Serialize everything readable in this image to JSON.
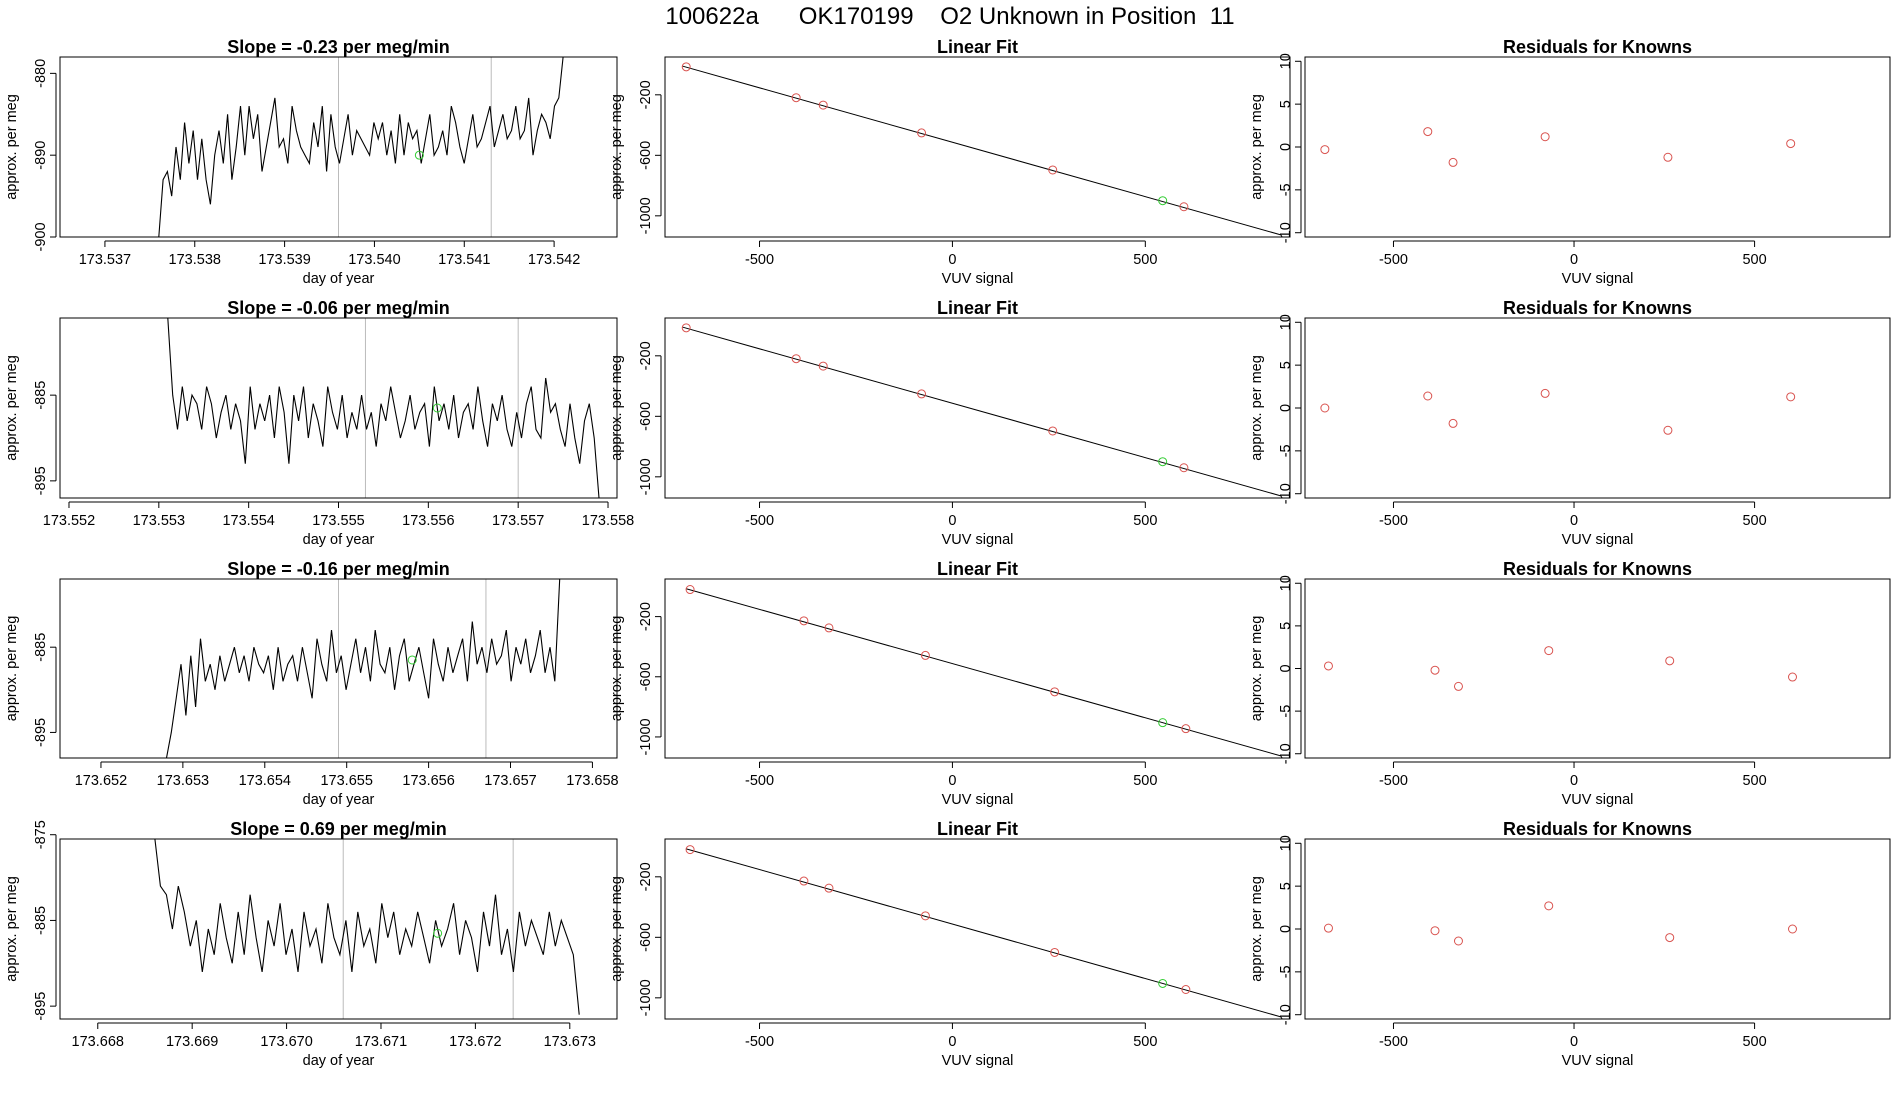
{
  "title": "100622a      OK170199    O2 Unknown in Position  11",
  "colors": {
    "line": "#000000",
    "frame": "#000000",
    "known_point": "#d9534f",
    "unknown_point": "#33cc33",
    "vline": "#bbbbbb"
  },
  "chart_data": [
    {
      "type": "line",
      "row": 0,
      "col": 0,
      "title": "Slope =  -0.23  per meg/min",
      "xlabel": "day of year",
      "ylabel": "approx. per meg",
      "xlim": [
        173.5365,
        173.5427
      ],
      "ylim": [
        -900,
        -878
      ],
      "xticks": [
        173.537,
        173.538,
        173.539,
        173.54,
        173.541,
        173.542
      ],
      "xtick_labels": [
        "173.537",
        "173.538",
        "173.539",
        "173.540",
        "173.541",
        "173.542"
      ],
      "yticks": [
        -900,
        -890,
        -880
      ],
      "ytick_labels": [
        "-900",
        "-890",
        "-880"
      ],
      "vlines": [
        173.5396,
        173.5413
      ],
      "x_start": 173.5376,
      "x_end": 173.5421,
      "series": [
        -900,
        -893,
        -892,
        -895,
        -889,
        -893,
        -886,
        -891,
        -887,
        -893,
        -888,
        -893,
        -896,
        -890,
        -887,
        -891,
        -885,
        -893,
        -889,
        -884,
        -890,
        -884,
        -888,
        -885,
        -892,
        -889,
        -886,
        -883,
        -889,
        -888,
        -891,
        -884,
        -887,
        -889,
        -890,
        -891,
        -886,
        -889,
        -884,
        -892,
        -885,
        -889,
        -891,
        -888,
        -885,
        -890,
        -887,
        -888,
        -889,
        -890,
        -886,
        -888,
        -886,
        -890,
        -887,
        -891,
        -885,
        -890,
        -886,
        -888,
        -887,
        -891,
        -888,
        -885,
        -890,
        -889,
        -887,
        -890,
        -884,
        -886,
        -889,
        -891,
        -888,
        -885,
        -889,
        -888,
        -886,
        -884,
        -889,
        -887,
        -885,
        -888,
        -887,
        -884,
        -888,
        -887,
        -883,
        -890,
        -887,
        -885,
        -886,
        -888,
        -884,
        -883,
        -878
      ],
      "unknown_point": {
        "x": 173.5405,
        "y": -890
      }
    },
    {
      "type": "line",
      "row": 1,
      "col": 0,
      "title": "Slope =  -0.06  per meg/min",
      "xlabel": "day of year",
      "ylabel": "approx. per meg",
      "xlim": [
        173.5519,
        173.5581
      ],
      "ylim": [
        -897,
        -876
      ],
      "xticks": [
        173.552,
        173.553,
        173.554,
        173.555,
        173.556,
        173.557,
        173.558
      ],
      "xtick_labels": [
        "173.552",
        "173.553",
        "173.554",
        "173.555",
        "173.556",
        "173.557",
        "173.558"
      ],
      "yticks": [
        -895,
        -885
      ],
      "ytick_labels": [
        "-895",
        "-885"
      ],
      "vlines": [
        173.5553,
        173.557
      ],
      "x_start": 173.5531,
      "x_end": 173.5579,
      "series": [
        -876,
        -885,
        -889,
        -884,
        -888,
        -885,
        -886,
        -889,
        -884,
        -886,
        -890,
        -887,
        -885,
        -889,
        -886,
        -888,
        -893,
        -884,
        -889,
        -886,
        -888,
        -885,
        -890,
        -884,
        -887,
        -893,
        -885,
        -888,
        -884,
        -890,
        -886,
        -888,
        -891,
        -884,
        -887,
        -889,
        -885,
        -890,
        -887,
        -889,
        -885,
        -889,
        -887,
        -891,
        -886,
        -888,
        -884,
        -887,
        -890,
        -888,
        -885,
        -889,
        -887,
        -886,
        -891,
        -884,
        -888,
        -886,
        -889,
        -885,
        -890,
        -887,
        -886,
        -889,
        -884,
        -888,
        -891,
        -886,
        -888,
        -885,
        -889,
        -891,
        -887,
        -890,
        -886,
        -884,
        -889,
        -890,
        -883,
        -887,
        -886,
        -889,
        -891,
        -886,
        -890,
        -893,
        -888,
        -886,
        -890,
        -897
      ],
      "unknown_point": {
        "x": 173.5561,
        "y": -886.5
      }
    },
    {
      "type": "line",
      "row": 2,
      "col": 0,
      "title": "Slope =  -0.16  per meg/min",
      "xlabel": "day of year",
      "ylabel": "approx. per meg",
      "xlim": [
        173.6515,
        173.6583
      ],
      "ylim": [
        -898,
        -877
      ],
      "xticks": [
        173.652,
        173.653,
        173.654,
        173.655,
        173.656,
        173.657,
        173.658
      ],
      "xtick_labels": [
        "173.652",
        "173.653",
        "173.654",
        "173.655",
        "173.656",
        "173.657",
        "173.658"
      ],
      "yticks": [
        -895,
        -885
      ],
      "ytick_labels": [
        "-895",
        "-885"
      ],
      "vlines": [
        173.6549,
        173.6567
      ],
      "x_start": 173.6528,
      "x_end": 173.6576,
      "series": [
        -898,
        -895,
        -891,
        -887,
        -893,
        -886,
        -892,
        -884,
        -889,
        -887,
        -890,
        -886,
        -889,
        -887,
        -885,
        -888,
        -886,
        -889,
        -885,
        -887,
        -888,
        -886,
        -890,
        -885,
        -889,
        -887,
        -886,
        -889,
        -885,
        -888,
        -891,
        -884,
        -887,
        -889,
        -883,
        -888,
        -886,
        -890,
        -887,
        -884,
        -888,
        -885,
        -889,
        -883,
        -887,
        -888,
        -885,
        -890,
        -886,
        -884,
        -889,
        -887,
        -885,
        -888,
        -891,
        -884,
        -887,
        -889,
        -885,
        -888,
        -886,
        -884,
        -889,
        -882,
        -887,
        -885,
        -888,
        -884,
        -887,
        -886,
        -883,
        -889,
        -885,
        -887,
        -884,
        -888,
        -886,
        -883,
        -888,
        -885,
        -889,
        -877
      ],
      "unknown_point": {
        "x": 173.6558,
        "y": -886.5
      }
    },
    {
      "type": "line",
      "row": 3,
      "col": 0,
      "title": "Slope =  0.69  per meg/min",
      "xlabel": "day of year",
      "ylabel": "approx. per meg",
      "xlim": [
        173.6676,
        173.6735
      ],
      "ylim": [
        -896.5,
        -875.5
      ],
      "xticks": [
        173.668,
        173.669,
        173.67,
        173.671,
        173.672,
        173.673
      ],
      "xtick_labels": [
        "173.668",
        "173.669",
        "173.670",
        "173.671",
        "173.672",
        "173.673"
      ],
      "yticks": [
        -895,
        -885,
        -875
      ],
      "ytick_labels": [
        "-895",
        "-885",
        "-875"
      ],
      "vlines": [
        173.6706,
        173.6724
      ],
      "x_start": 173.6686,
      "x_end": 173.6731,
      "series": [
        -875,
        -881,
        -882,
        -886,
        -881,
        -884,
        -888,
        -885,
        -891,
        -886,
        -889,
        -883,
        -887,
        -890,
        -884,
        -889,
        -882,
        -887,
        -891,
        -885,
        -888,
        -883,
        -889,
        -886,
        -891,
        -884,
        -888,
        -886,
        -890,
        -883,
        -887,
        -889,
        -885,
        -891,
        -884,
        -888,
        -886,
        -890,
        -883,
        -887,
        -884,
        -889,
        -886,
        -888,
        -884,
        -887,
        -890,
        -885,
        -888,
        -886,
        -883,
        -889,
        -885,
        -887,
        -891,
        -884,
        -888,
        -882,
        -889,
        -886,
        -891,
        -884,
        -888,
        -885,
        -887,
        -889,
        -884,
        -888,
        -885,
        -887,
        -889,
        -896
      ],
      "unknown_point": {
        "x": 173.6716,
        "y": -886.5
      }
    },
    {
      "type": "scatter",
      "row": 0,
      "col": 1,
      "title": "Linear Fit",
      "xlabel": "VUV signal",
      "ylabel": "approx. per meg",
      "xlim": [
        -745,
        875
      ],
      "ylim": [
        -1140,
        50
      ],
      "xticks": [
        -500,
        0,
        500
      ],
      "xtick_labels": [
        "-500",
        "0",
        "500"
      ],
      "yticks": [
        -1000,
        -600,
        -200
      ],
      "ytick_labels": [
        "-1000",
        "-600",
        "-200"
      ],
      "fit_line": {
        "x": [
          -700,
          850
        ],
        "y": [
          -10,
          -1125
        ]
      },
      "known_points": [
        {
          "x": -690,
          "y": -15
        },
        {
          "x": -405,
          "y": -219
        },
        {
          "x": -335,
          "y": -268
        },
        {
          "x": -80,
          "y": -452
        },
        {
          "x": 260,
          "y": -697
        },
        {
          "x": 600,
          "y": -940
        }
      ],
      "unknown_points": [
        {
          "x": 545,
          "y": -900
        }
      ]
    },
    {
      "type": "scatter",
      "row": 1,
      "col": 1,
      "title": "Linear Fit",
      "xlabel": "VUV signal",
      "ylabel": "approx. per meg",
      "xlim": [
        -745,
        875
      ],
      "ylim": [
        -1140,
        50
      ],
      "xticks": [
        -500,
        0,
        500
      ],
      "xtick_labels": [
        "-500",
        "0",
        "500"
      ],
      "yticks": [
        -1000,
        -600,
        -200
      ],
      "ytick_labels": [
        "-1000",
        "-600",
        "-200"
      ],
      "fit_line": {
        "x": [
          -700,
          850
        ],
        "y": [
          -10,
          -1125
        ]
      },
      "known_points": [
        {
          "x": -690,
          "y": -15
        },
        {
          "x": -405,
          "y": -219
        },
        {
          "x": -335,
          "y": -268
        },
        {
          "x": -80,
          "y": -452
        },
        {
          "x": 260,
          "y": -697
        },
        {
          "x": 600,
          "y": -940
        }
      ],
      "unknown_points": [
        {
          "x": 545,
          "y": -900
        }
      ]
    },
    {
      "type": "scatter",
      "row": 2,
      "col": 1,
      "title": "Linear Fit",
      "xlabel": "VUV signal",
      "ylabel": "approx. per meg",
      "xlim": [
        -745,
        875
      ],
      "ylim": [
        -1140,
        50
      ],
      "xticks": [
        -500,
        0,
        500
      ],
      "xtick_labels": [
        "-500",
        "0",
        "500"
      ],
      "yticks": [
        -1000,
        -600,
        -200
      ],
      "ytick_labels": [
        "-1000",
        "-600",
        "-200"
      ],
      "fit_line": {
        "x": [
          -690,
          850
        ],
        "y": [
          -15,
          -1125
        ]
      },
      "known_points": [
        {
          "x": -680,
          "y": -20
        },
        {
          "x": -385,
          "y": -228
        },
        {
          "x": -320,
          "y": -275
        },
        {
          "x": -70,
          "y": -458
        },
        {
          "x": 265,
          "y": -700
        },
        {
          "x": 605,
          "y": -945
        }
      ],
      "unknown_points": [
        {
          "x": 545,
          "y": -905
        }
      ]
    },
    {
      "type": "scatter",
      "row": 3,
      "col": 1,
      "title": "Linear Fit",
      "xlabel": "VUV signal",
      "ylabel": "approx. per meg",
      "xlim": [
        -745,
        875
      ],
      "ylim": [
        -1140,
        50
      ],
      "xticks": [
        -500,
        0,
        500
      ],
      "xtick_labels": [
        "-500",
        "0",
        "500"
      ],
      "yticks": [
        -1000,
        -600,
        -200
      ],
      "ytick_labels": [
        "-1000",
        "-600",
        "-200"
      ],
      "fit_line": {
        "x": [
          -690,
          850
        ],
        "y": [
          -15,
          -1125
        ]
      },
      "known_points": [
        {
          "x": -680,
          "y": -20
        },
        {
          "x": -385,
          "y": -228
        },
        {
          "x": -320,
          "y": -275
        },
        {
          "x": -70,
          "y": -458
        },
        {
          "x": 265,
          "y": -700
        },
        {
          "x": 605,
          "y": -945
        }
      ],
      "unknown_points": [
        {
          "x": 545,
          "y": -905
        }
      ]
    },
    {
      "type": "scatter",
      "row": 0,
      "col": 2,
      "title": "Residuals for Knowns",
      "xlabel": "VUV signal",
      "ylabel": "approx. per meg",
      "xlim": [
        -745,
        875
      ],
      "ylim": [
        -10.5,
        10.5
      ],
      "xticks": [
        -500,
        0,
        500
      ],
      "xtick_labels": [
        "-500",
        "0",
        "500"
      ],
      "yticks": [
        -10,
        -5,
        0,
        5,
        10
      ],
      "ytick_labels": [
        "-10",
        "-5",
        "0",
        "5",
        "10"
      ],
      "known_points": [
        {
          "x": -690,
          "y": -0.3
        },
        {
          "x": -405,
          "y": 1.8
        },
        {
          "x": -335,
          "y": -1.8
        },
        {
          "x": -80,
          "y": 1.2
        },
        {
          "x": 260,
          "y": -1.2
        },
        {
          "x": 600,
          "y": 0.4
        }
      ]
    },
    {
      "type": "scatter",
      "row": 1,
      "col": 2,
      "title": "Residuals for Knowns",
      "xlabel": "VUV signal",
      "ylabel": "approx. per meg",
      "xlim": [
        -745,
        875
      ],
      "ylim": [
        -10.5,
        10.5
      ],
      "xticks": [
        -500,
        0,
        500
      ],
      "xtick_labels": [
        "-500",
        "0",
        "500"
      ],
      "yticks": [
        -10,
        -5,
        0,
        5,
        10
      ],
      "ytick_labels": [
        "-10",
        "-5",
        "0",
        "5",
        "10"
      ],
      "known_points": [
        {
          "x": -690,
          "y": 0
        },
        {
          "x": -405,
          "y": 1.4
        },
        {
          "x": -335,
          "y": -1.8
        },
        {
          "x": -80,
          "y": 1.7
        },
        {
          "x": 260,
          "y": -2.6
        },
        {
          "x": 600,
          "y": 1.3
        }
      ]
    },
    {
      "type": "scatter",
      "row": 2,
      "col": 2,
      "title": "Residuals for Knowns",
      "xlabel": "VUV signal",
      "ylabel": "approx. per meg",
      "xlim": [
        -745,
        875
      ],
      "ylim": [
        -10.5,
        10.5
      ],
      "xticks": [
        -500,
        0,
        500
      ],
      "xtick_labels": [
        "-500",
        "0",
        "500"
      ],
      "yticks": [
        -10,
        -5,
        0,
        5,
        10
      ],
      "ytick_labels": [
        "-10",
        "-5",
        "0",
        "5",
        "10"
      ],
      "known_points": [
        {
          "x": -680,
          "y": 0.3
        },
        {
          "x": -385,
          "y": -0.2
        },
        {
          "x": -320,
          "y": -2.1
        },
        {
          "x": -70,
          "y": 2.1
        },
        {
          "x": 265,
          "y": 0.9
        },
        {
          "x": 605,
          "y": -1.0
        }
      ]
    },
    {
      "type": "scatter",
      "row": 3,
      "col": 2,
      "title": "Residuals for Knowns",
      "xlabel": "VUV signal",
      "ylabel": "approx. per meg",
      "xlim": [
        -745,
        875
      ],
      "ylim": [
        -10.5,
        10.5
      ],
      "xticks": [
        -500,
        0,
        500
      ],
      "xtick_labels": [
        "-500",
        "0",
        "500"
      ],
      "yticks": [
        -10,
        -5,
        0,
        5,
        10
      ],
      "ytick_labels": [
        "-10",
        "-5",
        "0",
        "5",
        "10"
      ],
      "known_points": [
        {
          "x": -680,
          "y": 0.1
        },
        {
          "x": -385,
          "y": -0.2
        },
        {
          "x": -320,
          "y": -1.4
        },
        {
          "x": -70,
          "y": 2.7
        },
        {
          "x": 265,
          "y": -1.0
        },
        {
          "x": 605,
          "y": 0.0
        }
      ]
    }
  ]
}
